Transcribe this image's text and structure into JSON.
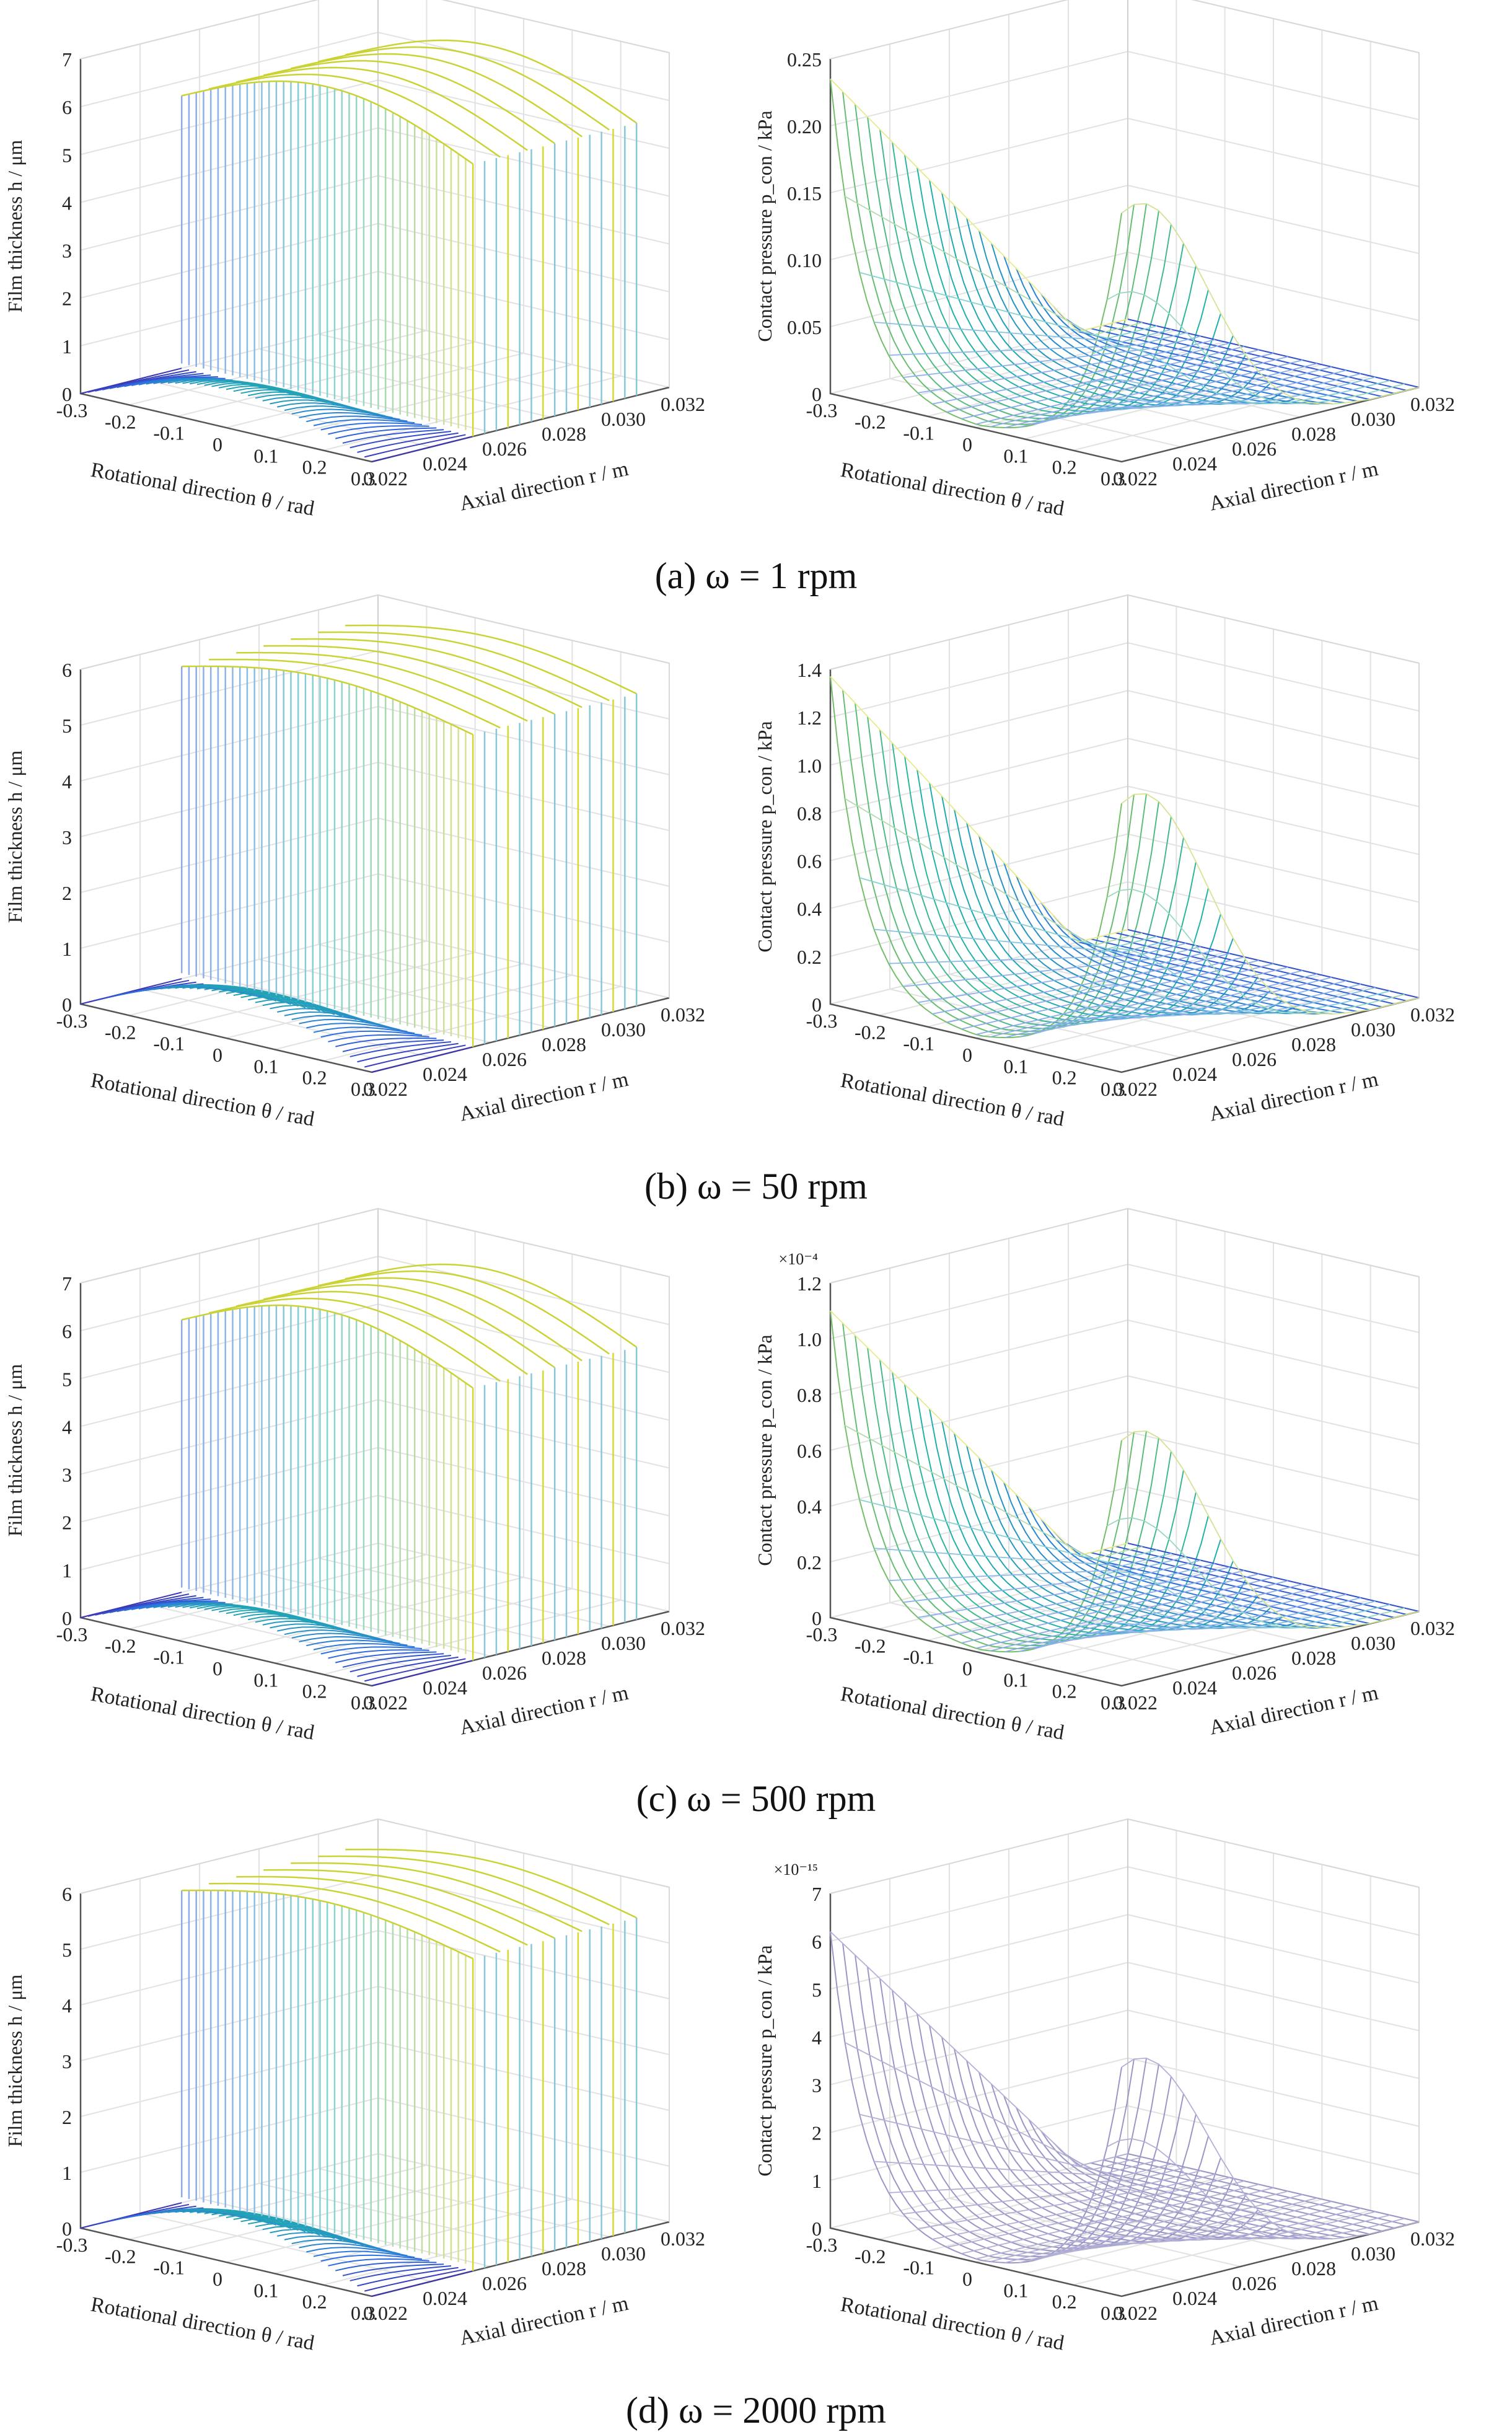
{
  "figure": {
    "captions": [
      "(a) ω = 1 rpm",
      "(b) ω = 50 rpm",
      "(c) ω = 500 rpm",
      "(d) ω = 2000 rpm"
    ]
  },
  "chart_data": [
    {
      "type": "surface3d",
      "panel": "a-left",
      "title": "",
      "zlabel": "Film thickness h / μm",
      "xlabel": "Rotational direction θ / rad",
      "ylabel": "Axial direction r / m",
      "xticks": [
        "-0.3",
        "-0.2",
        "-0.1",
        "0",
        "0.1",
        "0.2",
        "0.3"
      ],
      "yticks": [
        "0.022",
        "0.024",
        "0.026",
        "0.028",
        "0.030",
        "0.032"
      ],
      "zticks": [
        "0",
        "1",
        "2",
        "3",
        "4",
        "5",
        "6",
        "7"
      ],
      "zlim": [
        0,
        7
      ],
      "exponent": "",
      "surface": "film",
      "base_peak": 0.8,
      "plateau_min": 5.7,
      "plateau_peak": 6.6
    },
    {
      "type": "surface3d",
      "panel": "a-right",
      "title": "",
      "zlabel": "Contact pressure p_con / kPa",
      "xlabel": "Rotational direction θ / rad",
      "ylabel": "Axial direction r / m",
      "xticks": [
        "-0.3",
        "-0.2",
        "-0.1",
        "0",
        "0.1",
        "0.2",
        "0.3"
      ],
      "yticks": [
        "0.022",
        "0.024",
        "0.026",
        "0.028",
        "0.030",
        "0.032"
      ],
      "zticks": [
        "0",
        "0.05",
        "0.10",
        "0.15",
        "0.20",
        "0.25"
      ],
      "zlim": [
        0,
        0.25
      ],
      "exponent": "",
      "surface": "pressure",
      "peak_left": 0.235,
      "peak_right": 0.19
    },
    {
      "type": "surface3d",
      "panel": "b-left",
      "title": "",
      "zlabel": "Film thickness h / μm",
      "xlabel": "Rotational direction θ / rad",
      "ylabel": "Axial direction r / m",
      "xticks": [
        "-0.3",
        "-0.2",
        "-0.1",
        "0",
        "0.1",
        "0.2",
        "0.3"
      ],
      "yticks": [
        "0.022",
        "0.024",
        "0.026",
        "0.028",
        "0.030",
        "0.032"
      ],
      "zticks": [
        "0",
        "1",
        "2",
        "3",
        "4",
        "5",
        "6"
      ],
      "zlim": [
        0,
        6
      ],
      "exponent": "",
      "surface": "film",
      "base_peak": 0.8,
      "plateau_min": 5.6,
      "plateau_peak": 6.0
    },
    {
      "type": "surface3d",
      "panel": "b-right",
      "title": "",
      "zlabel": "Contact pressure p_con / kPa",
      "xlabel": "Rotational direction θ / rad",
      "ylabel": "Axial direction r / m",
      "xticks": [
        "-0.3",
        "-0.2",
        "-0.1",
        "0",
        "0.1",
        "0.2",
        "0.3"
      ],
      "yticks": [
        "0.022",
        "0.024",
        "0.026",
        "0.028",
        "0.030",
        "0.032"
      ],
      "zticks": [
        "0",
        "0.2",
        "0.4",
        "0.6",
        "0.8",
        "1.0",
        "1.2",
        "1.4"
      ],
      "zlim": [
        0,
        1.4
      ],
      "exponent": "",
      "surface": "pressure",
      "peak_left": 1.37,
      "peak_right": 1.15
    },
    {
      "type": "surface3d",
      "panel": "c-left",
      "title": "",
      "zlabel": "Film thickness h / μm",
      "xlabel": "Rotational direction θ / rad",
      "ylabel": "Axial direction r / m",
      "xticks": [
        "-0.3",
        "-0.2",
        "-0.1",
        "0",
        "0.1",
        "0.2",
        "0.3"
      ],
      "yticks": [
        "0.022",
        "0.024",
        "0.026",
        "0.028",
        "0.030",
        "0.032"
      ],
      "zticks": [
        "0",
        "1",
        "2",
        "3",
        "4",
        "5",
        "6",
        "7"
      ],
      "zlim": [
        0,
        7
      ],
      "exponent": "",
      "surface": "film",
      "base_peak": 0.8,
      "plateau_min": 5.7,
      "plateau_peak": 6.6
    },
    {
      "type": "surface3d",
      "panel": "c-right",
      "title": "",
      "zlabel": "Contact pressure p_con / kPa",
      "xlabel": "Rotational direction θ / rad",
      "ylabel": "Axial direction r / m",
      "xticks": [
        "-0.3",
        "-0.2",
        "-0.1",
        "0",
        "0.1",
        "0.2",
        "0.3"
      ],
      "yticks": [
        "0.022",
        "0.024",
        "0.026",
        "0.028",
        "0.030",
        "0.032"
      ],
      "zticks": [
        "0",
        "0.2",
        "0.4",
        "0.6",
        "0.8",
        "1.0",
        "1.2"
      ],
      "zlim": [
        0,
        1.2
      ],
      "exponent": "×10⁻⁴",
      "surface": "pressure",
      "peak_left": 1.1,
      "peak_right": 0.9
    },
    {
      "type": "surface3d",
      "panel": "d-left",
      "title": "",
      "zlabel": "Film thickness h / μm",
      "xlabel": "Rotational direction θ / rad",
      "ylabel": "Axial direction r / m",
      "xticks": [
        "-0.3",
        "-0.2",
        "-0.1",
        "0",
        "0.1",
        "0.2",
        "0.3"
      ],
      "yticks": [
        "0.022",
        "0.024",
        "0.026",
        "0.028",
        "0.030",
        "0.032"
      ],
      "zticks": [
        "0",
        "1",
        "2",
        "3",
        "4",
        "5",
        "6"
      ],
      "zlim": [
        0,
        6
      ],
      "exponent": "",
      "surface": "film",
      "base_peak": 0.8,
      "plateau_min": 5.6,
      "plateau_peak": 6.0
    },
    {
      "type": "surface3d",
      "panel": "d-right",
      "title": "",
      "zlabel": "Contact pressure p_con / kPa",
      "xlabel": "Rotational direction θ / rad",
      "ylabel": "Axial direction r / m",
      "xticks": [
        "-0.3",
        "-0.2",
        "-0.1",
        "0",
        "0.1",
        "0.2",
        "0.3"
      ],
      "yticks": [
        "0.022",
        "0.024",
        "0.026",
        "0.028",
        "0.030",
        "0.032"
      ],
      "zticks": [
        "0",
        "1",
        "2",
        "3",
        "4",
        "5",
        "6",
        "7"
      ],
      "zlim": [
        0,
        7
      ],
      "exponent": "×10⁻¹⁵",
      "surface": "pressure",
      "peak_left": 6.2,
      "peak_right": 4.9,
      "mono": true
    }
  ]
}
